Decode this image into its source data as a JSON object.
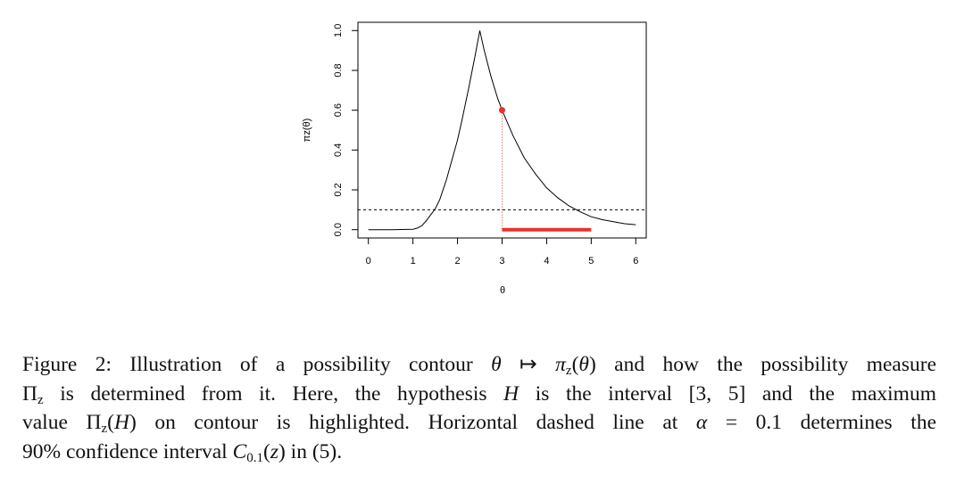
{
  "chart_data": {
    "type": "line",
    "xlabel": "θ",
    "ylabel": "πz(θ)",
    "xlim": [
      -0.23,
      6.23
    ],
    "ylim": [
      -0.04,
      1.04
    ],
    "xticks": [
      "0",
      "1",
      "2",
      "3",
      "4",
      "5",
      "6"
    ],
    "yticks": [
      "0.0",
      "0.2",
      "0.4",
      "0.6",
      "0.8",
      "1.0"
    ],
    "grid": false,
    "series": [
      {
        "x": [
          0,
          0.5,
          1,
          1.1,
          1.2,
          1.3,
          1.4,
          1.5,
          1.6,
          1.75,
          1.9,
          2,
          2.1,
          2.25,
          2.4,
          2.5,
          2.6,
          2.75,
          2.9,
          3,
          3.25,
          3.5,
          3.75,
          4,
          4.25,
          4.5,
          4.75,
          5,
          5.25,
          5.5,
          5.75,
          6
        ],
        "y": [
          0,
          0,
          0.002,
          0.008,
          0.02,
          0.045,
          0.075,
          0.105,
          0.15,
          0.25,
          0.37,
          0.45,
          0.55,
          0.71,
          0.88,
          1.0,
          0.9,
          0.77,
          0.66,
          0.6,
          0.47,
          0.36,
          0.28,
          0.21,
          0.16,
          0.12,
          0.09,
          0.065,
          0.05,
          0.04,
          0.03,
          0.025
        ],
        "color": "#000000"
      }
    ],
    "threshold": {
      "y": 0.1,
      "style": "dashed",
      "color": "#000000"
    },
    "highlight_interval": {
      "x": [
        3,
        5
      ],
      "y": 0,
      "color": "#e8322b"
    },
    "highlight_point": {
      "x": 3,
      "y": 0.6,
      "color": "#e8322b"
    }
  },
  "caption": {
    "lines": [
      [
        [
          "Figure 2: Illustration of a possibility contour ",
          "n"
        ],
        [
          "θ",
          "i"
        ],
        [
          " ↦ ",
          "n"
        ],
        [
          "π",
          "i"
        ],
        [
          "z",
          "sub"
        ],
        [
          "(",
          "n"
        ],
        [
          "θ",
          "i"
        ],
        [
          ") and how the possibility measure",
          "n"
        ]
      ],
      [
        [
          "Π",
          "n"
        ],
        [
          "z",
          "sub"
        ],
        [
          " is determined from it. Here, the hypothesis ",
          "n"
        ],
        [
          "H",
          "i"
        ],
        [
          " is the interval [3, 5] and the maximum",
          "n"
        ]
      ],
      [
        [
          "value Π",
          "n"
        ],
        [
          "z",
          "sub"
        ],
        [
          "(",
          "n"
        ],
        [
          "H",
          "i"
        ],
        [
          ") on contour is highlighted. Horizontal dashed line at ",
          "n"
        ],
        [
          "α",
          "i"
        ],
        [
          " = 0.1 determines the",
          "n"
        ]
      ],
      [
        [
          "90% confidence interval ",
          "n"
        ],
        [
          "C",
          "i"
        ],
        [
          "0.1",
          "sub"
        ],
        [
          "(",
          "n"
        ],
        [
          "z",
          "i"
        ],
        [
          ") in (5).",
          "n"
        ]
      ]
    ]
  }
}
